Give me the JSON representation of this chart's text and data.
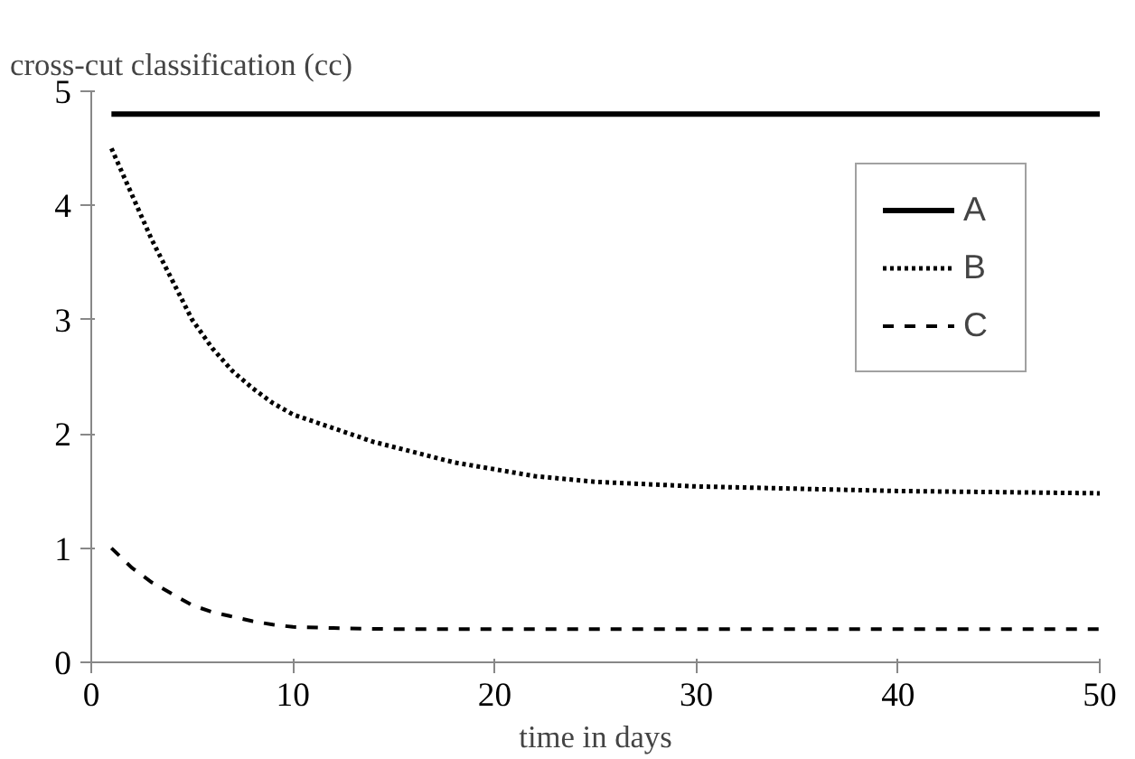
{
  "chart_data": {
    "type": "line",
    "ylabel": "cross-cut classification (cc)",
    "xlabel": "time in days",
    "xlim": [
      0,
      50
    ],
    "ylim": [
      0,
      5
    ],
    "xticks": [
      0,
      10,
      20,
      30,
      40,
      50
    ],
    "yticks": [
      0,
      1,
      2,
      3,
      4,
      5
    ],
    "grid": false,
    "legend": "top right",
    "marker": "none",
    "series": [
      {
        "name": "A",
        "color": "#000000",
        "line_style": "solid",
        "x": [
          1,
          50
        ],
        "values": [
          4.8,
          4.8
        ]
      },
      {
        "name": "B",
        "color": "#000000",
        "line_style": "dotted",
        "x": [
          1,
          2,
          3,
          4,
          5,
          6,
          7,
          8,
          9,
          10,
          12,
          14,
          16,
          18,
          20,
          22,
          25,
          30,
          35,
          40,
          45,
          50
        ],
        "values": [
          4.5,
          4.1,
          3.7,
          3.35,
          3.0,
          2.75,
          2.55,
          2.4,
          2.27,
          2.17,
          2.05,
          1.93,
          1.84,
          1.75,
          1.69,
          1.63,
          1.58,
          1.54,
          1.52,
          1.5,
          1.49,
          1.48
        ]
      },
      {
        "name": "C",
        "color": "#000000",
        "line_style": "dashed",
        "x": [
          1,
          2,
          3,
          4,
          5,
          6,
          7,
          8,
          9,
          10,
          12,
          15,
          20,
          30,
          40,
          50
        ],
        "values": [
          1.0,
          0.83,
          0.7,
          0.6,
          0.5,
          0.44,
          0.4,
          0.36,
          0.33,
          0.31,
          0.3,
          0.29,
          0.29,
          0.29,
          0.29,
          0.29
        ]
      }
    ]
  }
}
